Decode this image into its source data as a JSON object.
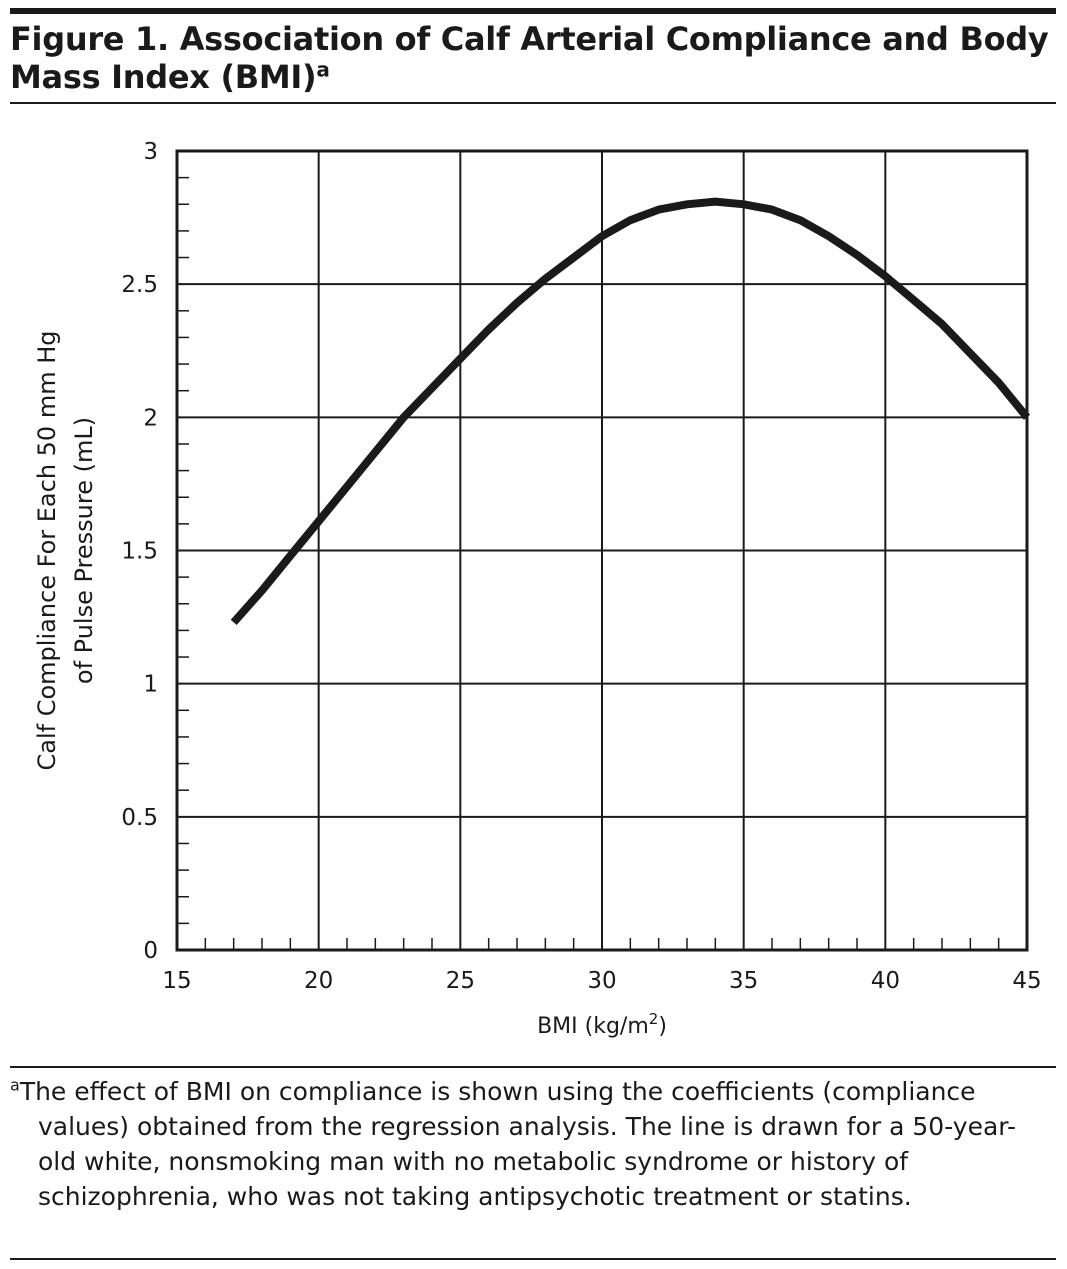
{
  "figure": {
    "title": "Figure 1. Association of Calf Arterial Compliance and Body Mass Index (BMI)",
    "title_marker": "a",
    "footnote_marker": "a",
    "footnote_text": "The effect of BMI on compliance is shown using the coefficients (compliance values) obtained from the regression analysis. The line is drawn for a 50-year-old white, nonsmoking man with no metabolic syndrome or history of schizophrenia, who was not taking antipsychotic treatment or statins."
  },
  "chart_data": {
    "type": "line",
    "xlabel": "BMI (kg/m",
    "xlabel_superscript": "2",
    "xlabel_suffix": ")",
    "ylabel_line1": "Calf Compliance For Each 50 mm Hg",
    "ylabel_line2": "of Pulse Pressure (mL)",
    "xlim": [
      15,
      45
    ],
    "ylim": [
      0,
      3
    ],
    "x_ticks": [
      "15",
      "20",
      "25",
      "30",
      "35",
      "40",
      "45"
    ],
    "y_ticks": [
      "0",
      "0.5",
      "1",
      "1.5",
      "2",
      "2.5",
      "3"
    ],
    "x_tick_values": [
      15,
      20,
      25,
      30,
      35,
      40,
      45
    ],
    "y_tick_values": [
      0,
      0.5,
      1,
      1.5,
      2,
      2.5,
      3
    ],
    "grid": true,
    "legend": "none",
    "line_color": "#1a1a1a",
    "series": [
      {
        "x": [
          17,
          18,
          19,
          20,
          21,
          22,
          23,
          24,
          25,
          26,
          27,
          28,
          29,
          30,
          31,
          32,
          33,
          34,
          35,
          36,
          37,
          38,
          39,
          40,
          41,
          42,
          43,
          44,
          45
        ],
        "values": [
          1.23,
          1.35,
          1.48,
          1.61,
          1.74,
          1.87,
          2.0,
          2.11,
          2.22,
          2.33,
          2.43,
          2.52,
          2.6,
          2.68,
          2.74,
          2.78,
          2.8,
          2.81,
          2.8,
          2.78,
          2.74,
          2.68,
          2.61,
          2.53,
          2.44,
          2.35,
          2.24,
          2.13,
          2.0
        ]
      }
    ]
  }
}
